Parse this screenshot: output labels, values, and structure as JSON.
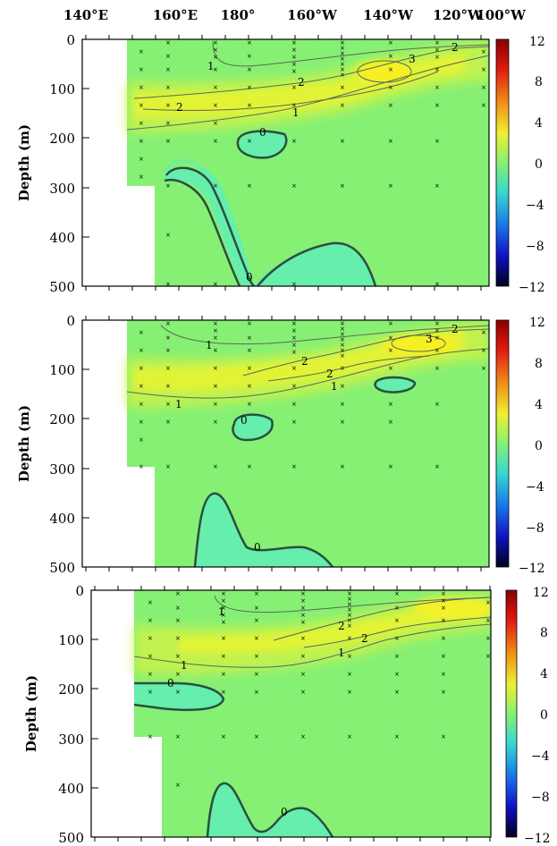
{
  "figure": {
    "top_axis_labels": [
      "140°E",
      "160°E",
      "180°",
      "160°W",
      "140°W",
      "120°W",
      "100°W"
    ],
    "ylabel": "Depth (m)",
    "y_ticks": [
      "0",
      "100",
      "200",
      "300",
      "400",
      "500"
    ],
    "colorbar_ticks": [
      "12",
      "8",
      "4",
      "0",
      "−4",
      "−8",
      "−12"
    ]
  },
  "colors": {
    "background_field": "#86f074",
    "yellow_green": "#c8f24c",
    "yellow": "#ecf634",
    "yellow_core": "#f4f222",
    "negative_cyan": "#66eeac",
    "contour_line": "#5a6a5a",
    "contour_zero": "#2a5040"
  },
  "chart_data": [
    {
      "type": "heatmap",
      "panel": "top",
      "title": "",
      "xlabel": "",
      "ylabel": "Depth (m)",
      "x_ticks": [
        "140°E",
        "160°E",
        "180°",
        "160°W",
        "140°W",
        "120°W",
        "100°W"
      ],
      "ylim": [
        500,
        0
      ],
      "colorbar": {
        "ticks": [
          12,
          8,
          4,
          0,
          -4,
          -8,
          -12
        ]
      },
      "contour_labels": [
        "1",
        "2",
        "3",
        "2",
        "2",
        "1",
        "0",
        "0"
      ],
      "features": [
        {
          "name": "positive core",
          "max_value": 3,
          "approx_lon": "125°W",
          "approx_depth_m": 70
        },
        {
          "name": "negative region",
          "value": 0,
          "approx_lon": "170°W",
          "depth_range_m": [
            190,
            220
          ]
        },
        {
          "name": "negative region",
          "value": 0,
          "approx_lon": "170°E-160°W",
          "depth_range_m": [
            250,
            500
          ]
        },
        {
          "name": "negative region",
          "value": 0,
          "approx_lon": "150°W",
          "depth_range_m": [
            420,
            500
          ]
        }
      ]
    },
    {
      "type": "heatmap",
      "panel": "middle",
      "title": "",
      "xlabel": "",
      "ylabel": "Depth (m)",
      "x_ticks": [
        "140°E",
        "160°E",
        "180°",
        "160°W",
        "140°W",
        "120°W",
        "100°W"
      ],
      "ylim": [
        500,
        0
      ],
      "colorbar": {
        "ticks": [
          12,
          8,
          4,
          0,
          -4,
          -8,
          -12
        ]
      },
      "contour_labels": [
        "1",
        "2",
        "3",
        "2",
        "2",
        "1",
        "1",
        "0",
        "0"
      ],
      "features": [
        {
          "name": "positive core",
          "max_value": 3,
          "approx_lon": "120°W",
          "approx_depth_m": 55
        },
        {
          "name": "negative region",
          "value": 0,
          "approx_lon": "170°W",
          "depth_range_m": [
            200,
            240
          ]
        },
        {
          "name": "negative region",
          "value": 0,
          "approx_lon": "130°W",
          "depth_range_m": [
            120,
            140
          ]
        },
        {
          "name": "negative region",
          "value": 0,
          "approx_lon": "180°-150°W",
          "depth_range_m": [
            360,
            500
          ]
        }
      ]
    },
    {
      "type": "heatmap",
      "panel": "bottom",
      "title": "",
      "xlabel": "",
      "ylabel": "Depth (m)",
      "x_ticks": [],
      "ylim": [
        500,
        0
      ],
      "colorbar": {
        "ticks": [
          12,
          8,
          4,
          0,
          -4,
          -8,
          -12
        ]
      },
      "contour_labels": [
        "1",
        "2",
        "2",
        "1",
        "1",
        "0",
        "0"
      ],
      "features": [
        {
          "name": "positive core",
          "max_value": 2,
          "approx_lon": "110°W",
          "approx_depth_m": 60
        },
        {
          "name": "negative region",
          "value": 0,
          "approx_lon": "160°E-175°E",
          "depth_range_m": [
            190,
            240
          ]
        },
        {
          "name": "negative region",
          "value": 0,
          "approx_lon": "180°-150°W",
          "depth_range_m": [
            390,
            500
          ]
        }
      ]
    }
  ]
}
